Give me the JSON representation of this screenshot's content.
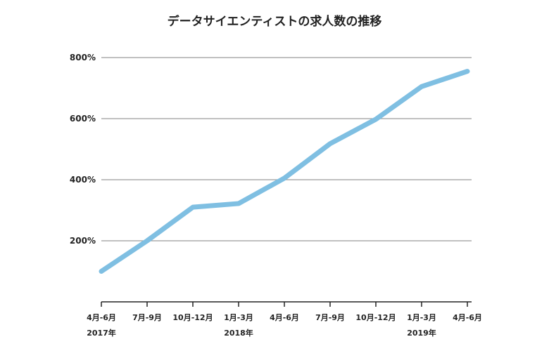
{
  "chart_data": {
    "type": "line",
    "title": "データサイエンティストの求人数の推移",
    "xlabel": "",
    "ylabel": "",
    "categories": [
      "4月-6月",
      "7月-9月",
      "10月-12月",
      "1月-3月",
      "4月-6月",
      "7月-9月",
      "10月-12月",
      "1月-3月",
      "4月-6月"
    ],
    "year_labels": [
      {
        "category_index": 0,
        "label": "2017年"
      },
      {
        "category_index": 3,
        "label": "2018年"
      },
      {
        "category_index": 7,
        "label": "2019年"
      }
    ],
    "series": [
      {
        "values": [
          100,
          200,
          310,
          322,
          405,
          518,
          598,
          705,
          755
        ]
      }
    ],
    "yticks": [
      200,
      400,
      600,
      800
    ],
    "ytick_labels": [
      "200%",
      "400%",
      "600%",
      "800%"
    ],
    "ylim": [
      0,
      800
    ],
    "grid": true,
    "colors": {
      "line": "#7fbfe2",
      "grid": "#9a9a9a",
      "axis": "#222222"
    }
  }
}
